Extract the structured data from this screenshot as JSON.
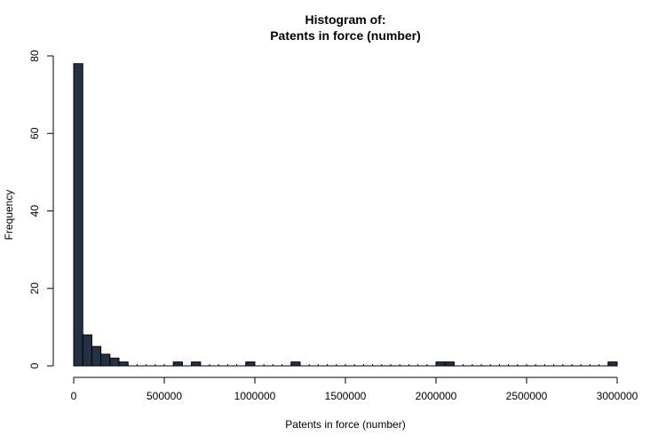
{
  "chart_data": {
    "type": "bar",
    "title_line1": "Histogram of:",
    "title_line2": "Patents in force (number)",
    "xlabel": "Patents in force (number)",
    "ylabel": "Frequency",
    "bin_width": 50000,
    "xlim": [
      0,
      3000000
    ],
    "ylim": [
      0,
      80
    ],
    "x_ticks": [
      0,
      500000,
      1000000,
      1500000,
      2000000,
      2500000,
      3000000
    ],
    "x_tick_labels": [
      "0",
      "500000",
      "1000000",
      "1500000",
      "2000000",
      "2500000",
      "3000000"
    ],
    "y_ticks": [
      0,
      20,
      40,
      60,
      80
    ],
    "y_tick_labels": [
      "0",
      "20",
      "40",
      "60",
      "80"
    ],
    "bins": [
      {
        "start": 0,
        "end": 50000,
        "count": 78
      },
      {
        "start": 50000,
        "end": 100000,
        "count": 8
      },
      {
        "start": 100000,
        "end": 150000,
        "count": 5
      },
      {
        "start": 150000,
        "end": 200000,
        "count": 3
      },
      {
        "start": 200000,
        "end": 250000,
        "count": 2
      },
      {
        "start": 250000,
        "end": 300000,
        "count": 1
      },
      {
        "start": 550000,
        "end": 600000,
        "count": 1
      },
      {
        "start": 650000,
        "end": 700000,
        "count": 1
      },
      {
        "start": 950000,
        "end": 1000000,
        "count": 1
      },
      {
        "start": 1200000,
        "end": 1250000,
        "count": 1
      },
      {
        "start": 2000000,
        "end": 2050000,
        "count": 1
      },
      {
        "start": 2050000,
        "end": 2100000,
        "count": 1
      },
      {
        "start": 2950000,
        "end": 3000000,
        "count": 1
      }
    ],
    "bar_color": "#243142",
    "grid": false
  }
}
